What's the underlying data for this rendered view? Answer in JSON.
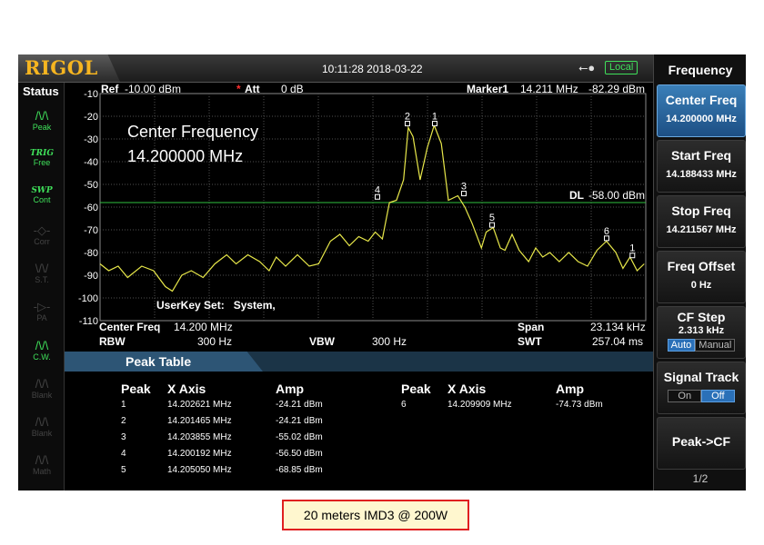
{
  "brand": "RIGOL",
  "datetime": "10:11:28 2018-03-22",
  "usb_icon": "usb-icon",
  "local_label": "Local",
  "status": {
    "title": "Status",
    "items": [
      {
        "icon": "peak-icon",
        "label": "Peak",
        "active": true
      },
      {
        "icon": "trig-icon",
        "caption": "TRIG",
        "label": "Free",
        "active": true
      },
      {
        "icon": "swp-icon",
        "caption": "SWP",
        "label": "Cont",
        "active": true
      },
      {
        "icon": "corr-icon",
        "label": "Corr",
        "active": false
      },
      {
        "icon": "st-icon",
        "label": "S.T.",
        "active": false
      },
      {
        "icon": "pa-icon",
        "label": "PA",
        "active": false
      },
      {
        "icon": "cw-icon",
        "label": "C.W.",
        "active": true
      },
      {
        "icon": "blank-icon",
        "label": "Blank",
        "active": false
      },
      {
        "icon": "blank-icon",
        "label": "Blank",
        "active": false
      },
      {
        "icon": "math-icon",
        "label": "Math",
        "active": false
      }
    ]
  },
  "header": {
    "ref_label": "Ref",
    "ref_value": "-10.00 dBm",
    "att_marker": "*",
    "att_label": "Att",
    "att_value": "0 dB",
    "marker_label": "Marker1",
    "marker_freq": "14.211 MHz",
    "marker_amp": "-82.29 dBm"
  },
  "overlay": {
    "line1": "Center Frequency",
    "line2": "14.200000 MHz",
    "userkey": "UserKey Set:   System,",
    "dl_label": "DL",
    "dl_value": "-58.00 dBm"
  },
  "footer": {
    "center_freq_label": "Center Freq",
    "center_freq_value": "14.200 MHz",
    "span_label": "Span",
    "span_value": "23.134 kHz",
    "rbw_label": "RBW",
    "rbw_value": "300 Hz",
    "vbw_label": "VBW",
    "vbw_value": "300 Hz",
    "swt_label": "SWT",
    "swt_value": "257.04 ms"
  },
  "peak_table": {
    "title": "Peak Table",
    "headers": [
      "Peak",
      "X Axis",
      "Amp"
    ],
    "rows": [
      {
        "peak": "1",
        "x": "14.202621 MHz",
        "amp": "-24.21 dBm"
      },
      {
        "peak": "2",
        "x": "14.201465 MHz",
        "amp": "-24.21 dBm"
      },
      {
        "peak": "3",
        "x": "14.203855 MHz",
        "amp": "-55.02 dBm"
      },
      {
        "peak": "4",
        "x": "14.200192 MHz",
        "amp": "-56.50 dBm"
      },
      {
        "peak": "5",
        "x": "14.205050 MHz",
        "amp": "-68.85 dBm"
      },
      {
        "peak": "6",
        "x": "14.209909 MHz",
        "amp": "-74.73 dBm"
      }
    ]
  },
  "menu": {
    "title": "Frequency",
    "center_freq": {
      "label": "Center Freq",
      "value": "14.200000 MHz"
    },
    "start_freq": {
      "label": "Start Freq",
      "value": "14.188433 MHz"
    },
    "stop_freq": {
      "label": "Stop Freq",
      "value": "14.211567 MHz"
    },
    "freq_offset": {
      "label": "Freq Offset",
      "value": "0 Hz"
    },
    "cf_step": {
      "label": "CF Step",
      "value": "2.313 kHz",
      "auto": "Auto",
      "manual": "Manual"
    },
    "signal_track": {
      "label": "Signal Track",
      "on": "On",
      "off": "Off"
    },
    "peak_cf": {
      "label": "Peak->CF"
    },
    "page": "1/2"
  },
  "caption": "20 meters IMD3 @ 200W",
  "chart_data": {
    "type": "line",
    "colors": {
      "trace": "#e8e84a",
      "display_line": "#2fbf3f",
      "grid": "#505050"
    },
    "y_ticks": [
      "-10",
      "-20",
      "-30",
      "-40",
      "-50",
      "-60",
      "-70",
      "-80",
      "-90",
      "-100",
      "-110"
    ],
    "ylim": [
      -110,
      -10
    ],
    "xlim": [
      14.188433,
      14.211567
    ],
    "x_unit": "MHz",
    "y_unit": "dBm",
    "display_line": -58,
    "markers": [
      {
        "label": "1",
        "x": 14.202621,
        "y": -24.21
      },
      {
        "label": "2",
        "x": 14.201465,
        "y": -24.21
      },
      {
        "label": "3",
        "x": 14.203855,
        "y": -55.02
      },
      {
        "label": "4",
        "x": 14.200192,
        "y": -56.5
      },
      {
        "label": "5",
        "x": 14.20505,
        "y": -68.85
      },
      {
        "label": "6",
        "x": 14.209909,
        "y": -74.73
      },
      {
        "label": "1",
        "x": 14.211,
        "y": -82.29
      }
    ],
    "trace": [
      [
        14.188433,
        -85
      ],
      [
        14.1888,
        -88
      ],
      [
        14.1892,
        -86
      ],
      [
        14.1896,
        -91
      ],
      [
        14.1902,
        -86
      ],
      [
        14.1907,
        -88
      ],
      [
        14.1912,
        -95
      ],
      [
        14.1915,
        -97
      ],
      [
        14.1919,
        -90
      ],
      [
        14.1923,
        -88
      ],
      [
        14.1928,
        -91
      ],
      [
        14.1933,
        -85
      ],
      [
        14.1938,
        -81
      ],
      [
        14.1942,
        -85
      ],
      [
        14.1947,
        -81
      ],
      [
        14.1952,
        -84
      ],
      [
        14.1956,
        -88
      ],
      [
        14.1959,
        -82
      ],
      [
        14.1963,
        -86
      ],
      [
        14.1968,
        -81
      ],
      [
        14.1973,
        -86
      ],
      [
        14.1977,
        -85
      ],
      [
        14.1982,
        -75
      ],
      [
        14.1986,
        -72
      ],
      [
        14.199,
        -77
      ],
      [
        14.1994,
        -73
      ],
      [
        14.1998,
        -75
      ],
      [
        14.2001,
        -71
      ],
      [
        14.2004,
        -74
      ],
      [
        14.2007,
        -58
      ],
      [
        14.201,
        -57
      ],
      [
        14.2013,
        -48
      ],
      [
        14.2015,
        -25
      ],
      [
        14.2017,
        -29
      ],
      [
        14.202,
        -48
      ],
      [
        14.2023,
        -34
      ],
      [
        14.2026,
        -24
      ],
      [
        14.2029,
        -32
      ],
      [
        14.2032,
        -57
      ],
      [
        14.2036,
        -55
      ],
      [
        14.2039,
        -60
      ],
      [
        14.2042,
        -67
      ],
      [
        14.2046,
        -78
      ],
      [
        14.2048,
        -71
      ],
      [
        14.2051,
        -69
      ],
      [
        14.2054,
        -78
      ],
      [
        14.2056,
        -79
      ],
      [
        14.2059,
        -72
      ],
      [
        14.2062,
        -79
      ],
      [
        14.2066,
        -84
      ],
      [
        14.2069,
        -78
      ],
      [
        14.2072,
        -82
      ],
      [
        14.2075,
        -80
      ],
      [
        14.2079,
        -84
      ],
      [
        14.2083,
        -80
      ],
      [
        14.2087,
        -84
      ],
      [
        14.2091,
        -86
      ],
      [
        14.2095,
        -79
      ],
      [
        14.2099,
        -75
      ],
      [
        14.2103,
        -80
      ],
      [
        14.2106,
        -87
      ],
      [
        14.2109,
        -82
      ],
      [
        14.2112,
        -88
      ],
      [
        14.2115,
        -85
      ]
    ]
  }
}
